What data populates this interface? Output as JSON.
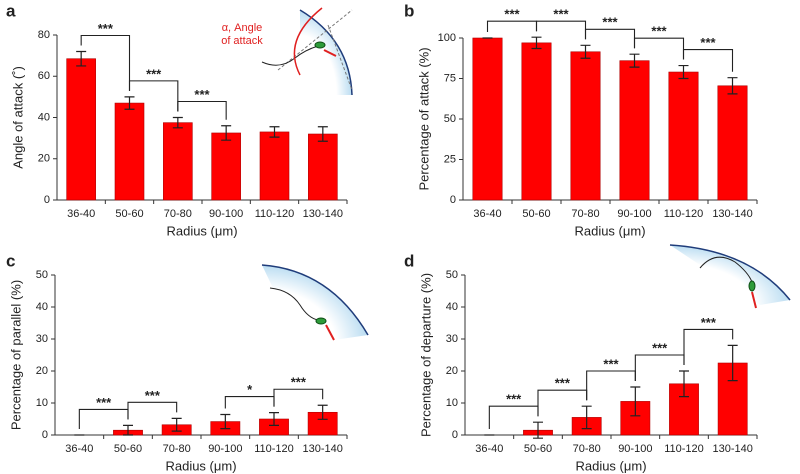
{
  "chart_data": [
    {
      "type": "bar",
      "panel": "a",
      "ylabel": "Angle of attack (˚)",
      "xlabel": "Radius (μm)",
      "categories": [
        "36-40",
        "50-60",
        "70-80",
        "90-100",
        "110-120",
        "130-140"
      ],
      "values": [
        68.5,
        47,
        37.5,
        32.5,
        33,
        32
      ],
      "error": [
        3.5,
        3,
        2.5,
        3.5,
        2.5,
        3.5
      ],
      "color": "#ff0000",
      "ylim": [
        0,
        80
      ],
      "yticks": [
        0,
        20,
        40,
        60,
        80
      ],
      "annotation": [
        "α, Angle",
        "of attack"
      ],
      "brackets": [
        {
          "between": [
            "36-40",
            "50-60"
          ],
          "label": "***"
        },
        {
          "between": [
            "50-60",
            "70-80"
          ],
          "label": "***"
        },
        {
          "between": [
            "70-80",
            "90-100"
          ],
          "label": "***"
        }
      ]
    },
    {
      "type": "bar",
      "panel": "b",
      "ylabel": "Percentage of attack (%)",
      "xlabel": "Radius (μm)",
      "categories": [
        "36-40",
        "50-60",
        "70-80",
        "90-100",
        "110-120",
        "130-140"
      ],
      "values": [
        100,
        97,
        91.5,
        86,
        79,
        70.5
      ],
      "error": [
        0,
        3.5,
        4,
        4,
        4,
        5
      ],
      "color": "#ff0000",
      "ylim": [
        0,
        100
      ],
      "yticks": [
        0,
        25,
        50,
        75,
        100
      ],
      "brackets": [
        {
          "between": [
            "36-40",
            "50-60"
          ],
          "label": "***"
        },
        {
          "between": [
            "50-60",
            "70-80"
          ],
          "label": "***"
        },
        {
          "between": [
            "70-80",
            "90-100"
          ],
          "label": "***"
        },
        {
          "between": [
            "90-100",
            "110-120"
          ],
          "label": "***"
        },
        {
          "between": [
            "110-120",
            "130-140"
          ],
          "label": "***"
        }
      ]
    },
    {
      "type": "bar",
      "panel": "c",
      "ylabel": "Percentage of parallel (%)",
      "xlabel": "Radius (μm)",
      "categories": [
        "36-40",
        "50-60",
        "70-80",
        "90-100",
        "110-120",
        "130-140"
      ],
      "values": [
        0,
        1.5,
        3.2,
        4.2,
        5,
        7.1
      ],
      "error": [
        0,
        1.5,
        2,
        2.2,
        2,
        2.2
      ],
      "color": "#ff0000",
      "ylim": [
        0,
        50
      ],
      "yticks": [
        0,
        10,
        20,
        30,
        40,
        50
      ],
      "brackets": [
        {
          "between": [
            "36-40",
            "50-60"
          ],
          "label": "***"
        },
        {
          "between": [
            "50-60",
            "70-80"
          ],
          "label": "***"
        },
        {
          "between": [
            "90-100",
            "110-120"
          ],
          "label": "*"
        },
        {
          "between": [
            "110-120",
            "130-140"
          ],
          "label": "***"
        }
      ]
    },
    {
      "type": "bar",
      "panel": "d",
      "ylabel": "Percentage of departure (%)",
      "xlabel": "Radius (μm)",
      "categories": [
        "36-40",
        "50-60",
        "70-80",
        "90-100",
        "110-120",
        "130-140"
      ],
      "values": [
        0,
        1.5,
        5.5,
        10.5,
        16,
        22.5
      ],
      "error": [
        0,
        2.5,
        3.5,
        4.5,
        4,
        5.5
      ],
      "color": "#ff0000",
      "ylim": [
        0,
        50
      ],
      "yticks": [
        0,
        10,
        20,
        30,
        40,
        50
      ],
      "brackets": [
        {
          "between": [
            "36-40",
            "50-60"
          ],
          "label": "***"
        },
        {
          "between": [
            "50-60",
            "70-80"
          ],
          "label": "***"
        },
        {
          "between": [
            "70-80",
            "90-100"
          ],
          "label": "***"
        },
        {
          "between": [
            "90-100",
            "110-120"
          ],
          "label": "***"
        },
        {
          "between": [
            "110-120",
            "130-140"
          ],
          "label": "***"
        }
      ]
    }
  ]
}
